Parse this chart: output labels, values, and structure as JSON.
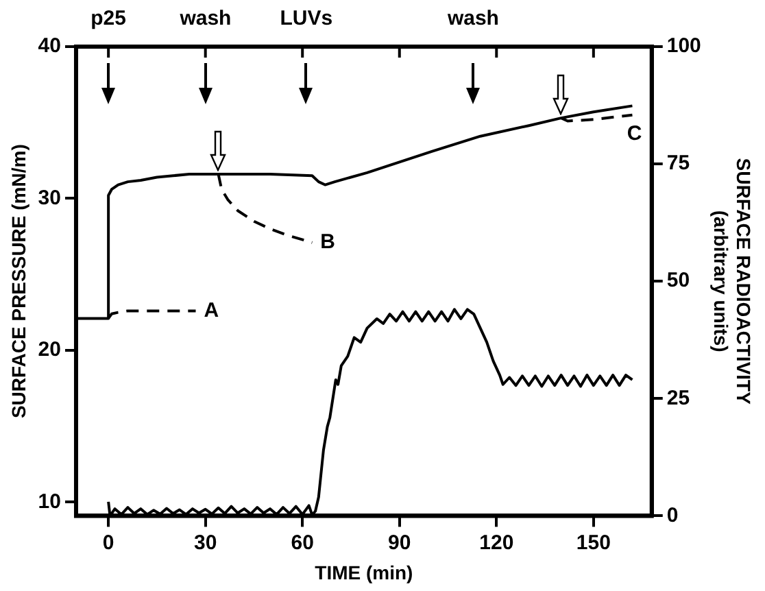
{
  "chart_data": {
    "type": "line",
    "xlabel": "TIME (min)",
    "ylabel": "SURFACE PRESSURE (mN/m)",
    "y2label": "SURFACE RADIOACTIVITY\n(arbitrary units)",
    "xlim": [
      -10,
      168
    ],
    "xticks": [
      0,
      30,
      60,
      90,
      120,
      150
    ],
    "ylim": [
      9.1,
      40
    ],
    "yticks": [
      10,
      20,
      30,
      40
    ],
    "y2lim": [
      0,
      100
    ],
    "y2ticks": [
      0,
      25,
      50,
      75,
      100
    ],
    "grid": false,
    "legend": false,
    "marker": "none",
    "annotations": [
      "p25",
      "wash",
      "LUVs",
      "wash"
    ],
    "series": [
      {
        "color": "#000000",
        "line_style": "solid",
        "x": [
          -10,
          0,
          0,
          1,
          3,
          6,
          10,
          15,
          20,
          25,
          30,
          40,
          50,
          63,
          65,
          67,
          70,
          80,
          90,
          100,
          115,
          130,
          140,
          150,
          162
        ],
        "values": [
          22.1,
          22.1,
          30.2,
          30.6,
          30.9,
          31.1,
          31.2,
          31.4,
          31.5,
          31.6,
          31.6,
          31.6,
          31.6,
          31.5,
          31.1,
          30.9,
          31.1,
          31.7,
          32.4,
          33.1,
          34.1,
          34.8,
          35.3,
          35.7,
          36.1
        ]
      },
      {
        "name": "A",
        "color": "#000000",
        "line_style": "dashed",
        "x": [
          0,
          1,
          3,
          6,
          12,
          20,
          27
        ],
        "values": [
          22.1,
          22.4,
          22.5,
          22.6,
          22.6,
          22.6,
          22.6
        ]
      },
      {
        "name": "B",
        "color": "#000000",
        "line_style": "dashed",
        "x": [
          34,
          35,
          37,
          40,
          45,
          50,
          55,
          63
        ],
        "values": [
          31.6,
          30.6,
          29.9,
          29.2,
          28.5,
          28,
          27.6,
          27.1
        ]
      },
      {
        "name": "C",
        "color": "#000000",
        "line_style": "dashed",
        "x": [
          140,
          142,
          150,
          162
        ],
        "values": [
          35.3,
          35.1,
          35.2,
          35.5
        ]
      },
      {
        "color": "#000000",
        "line_style": "solid",
        "axis": "y2",
        "x": [
          0,
          0.5,
          2,
          4,
          6,
          8,
          10,
          12,
          14,
          16,
          18,
          20,
          22,
          24,
          26,
          28,
          30,
          32,
          34,
          36,
          38,
          40,
          42,
          44,
          46,
          48,
          50,
          52,
          54,
          56,
          58,
          60,
          62,
          63,
          64,
          65,
          65.6,
          66.5,
          67.7,
          68.5,
          70.3,
          71,
          72,
          74,
          76,
          78,
          80,
          83,
          85,
          87,
          89,
          91,
          93,
          95,
          97,
          99,
          101,
          103,
          105,
          107,
          109,
          111,
          113,
          115,
          117,
          119,
          121,
          122,
          124,
          126,
          128,
          130,
          132,
          134,
          136,
          138,
          140,
          142,
          144,
          146,
          148,
          150,
          152,
          154,
          156,
          158,
          160,
          162
        ],
        "values": [
          3,
          0,
          1.5,
          0.3,
          1.8,
          0.5,
          1.5,
          0.3,
          1.2,
          0.4,
          1.6,
          0.5,
          1.3,
          0.3,
          1.5,
          0.6,
          1.4,
          0.4,
          1.7,
          0.5,
          2,
          0.6,
          1.5,
          0.4,
          1.8,
          0.6,
          1.5,
          0.3,
          1.8,
          0.5,
          2,
          0.3,
          2.2,
          0.2,
          1,
          4,
          8,
          14,
          19,
          21,
          29,
          28,
          32,
          34,
          38,
          37,
          40,
          42,
          41,
          43,
          41.5,
          43.5,
          41.5,
          43.5,
          41.5,
          43.5,
          41.5,
          43.5,
          41.5,
          44,
          42,
          44,
          43,
          40,
          37,
          33,
          30,
          28,
          29.5,
          27.8,
          29.8,
          27.8,
          29.8,
          27.6,
          29.8,
          27.8,
          30,
          27.8,
          29.8,
          27.6,
          30,
          27.8,
          29.8,
          27.8,
          30,
          27.8,
          30,
          29
        ]
      }
    ]
  }
}
